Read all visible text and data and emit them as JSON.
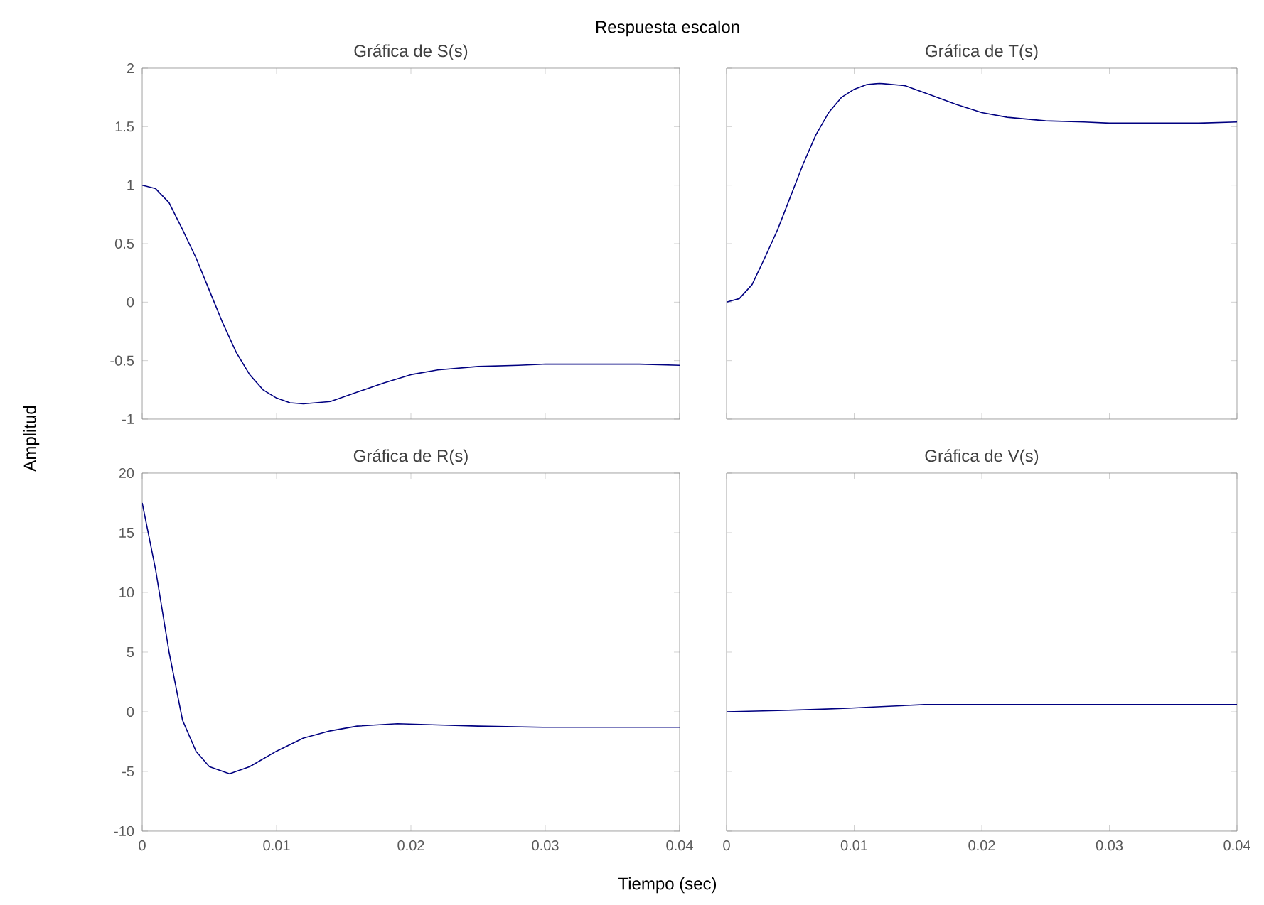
{
  "chart_data": [
    {
      "type": "line",
      "title": "Gráfica de S(s)",
      "annotations": [
        "Respuesta escalon",
        "Amplitud",
        "Tiempo (sec)"
      ],
      "x": [
        0,
        0.001,
        0.002,
        0.003,
        0.004,
        0.005,
        0.006,
        0.007,
        0.008,
        0.009,
        0.01,
        0.011,
        0.012,
        0.014,
        0.016,
        0.018,
        0.02,
        0.022,
        0.025,
        0.028,
        0.03,
        0.034,
        0.037,
        0.04
      ],
      "values": [
        1,
        0.97,
        0.85,
        0.62,
        0.38,
        0.1,
        -0.18,
        -0.43,
        -0.62,
        -0.75,
        -0.82,
        -0.86,
        -0.87,
        -0.85,
        -0.77,
        -0.69,
        -0.62,
        -0.58,
        -0.55,
        -0.54,
        -0.53,
        -0.53,
        -0.53,
        -0.54
      ],
      "color": "#000080",
      "xlim": [
        0,
        0.04
      ],
      "xticks": [
        0,
        0.01,
        0.02,
        0.03,
        0.04
      ],
      "ylim": [
        -1,
        2
      ],
      "yticks": [
        -1,
        -0.5,
        0,
        0.5,
        1,
        1.5,
        2
      ],
      "tick_labels": "y"
    },
    {
      "type": "line",
      "title": "Gráfica de T(s)",
      "x": [
        0,
        0.001,
        0.002,
        0.003,
        0.004,
        0.005,
        0.006,
        0.007,
        0.008,
        0.009,
        0.01,
        0.011,
        0.012,
        0.014,
        0.016,
        0.018,
        0.02,
        0.022,
        0.025,
        0.028,
        0.03,
        0.034,
        0.037,
        0.04
      ],
      "values": [
        0,
        0.03,
        0.15,
        0.38,
        0.62,
        0.9,
        1.18,
        1.43,
        1.62,
        1.75,
        1.82,
        1.86,
        1.87,
        1.85,
        1.77,
        1.69,
        1.62,
        1.58,
        1.55,
        1.54,
        1.53,
        1.53,
        1.53,
        1.54
      ],
      "color": "#000080",
      "xlim": [
        0,
        0.04
      ],
      "xticks": [
        0,
        0.01,
        0.02,
        0.03,
        0.04
      ],
      "ylim": [
        -1,
        2
      ],
      "yticks": [
        -1,
        -0.5,
        0,
        0.5,
        1,
        1.5,
        2
      ],
      "tick_labels": false
    },
    {
      "type": "line",
      "title": "Gráfica de R(s)",
      "x": [
        0,
        0.001,
        0.002,
        0.003,
        0.004,
        0.005,
        0.0065,
        0.008,
        0.01,
        0.012,
        0.014,
        0.016,
        0.019,
        0.022,
        0.025,
        0.03,
        0.04
      ],
      "values": [
        17.5,
        11.9,
        5,
        -0.7,
        -3.3,
        -4.6,
        -5.2,
        -4.6,
        -3.3,
        -2.2,
        -1.6,
        -1.2,
        -1,
        -1.1,
        -1.2,
        -1.3,
        -1.3
      ],
      "color": "#000080",
      "xlim": [
        0,
        0.04
      ],
      "xticks": [
        0,
        0.01,
        0.02,
        0.03,
        0.04
      ],
      "ylim": [
        -10,
        20
      ],
      "yticks": [
        -10,
        -5,
        0,
        5,
        10,
        15,
        20
      ]
    },
    {
      "type": "line",
      "title": "Gráfica de V(s)",
      "x": [
        0,
        0.004,
        0.007,
        0.0095,
        0.0115,
        0.0155,
        0.04
      ],
      "values": [
        0,
        0.1,
        0.2,
        0.3,
        0.4,
        0.6,
        0.6
      ],
      "color": "#000080",
      "xlim": [
        0,
        0.04
      ],
      "xticks": [
        0,
        0.01,
        0.02,
        0.03,
        0.04
      ],
      "ylim": [
        -10,
        20
      ],
      "yticks": [
        -10,
        -5,
        0,
        5,
        10,
        15,
        20
      ],
      "tick_labels": "x"
    }
  ]
}
